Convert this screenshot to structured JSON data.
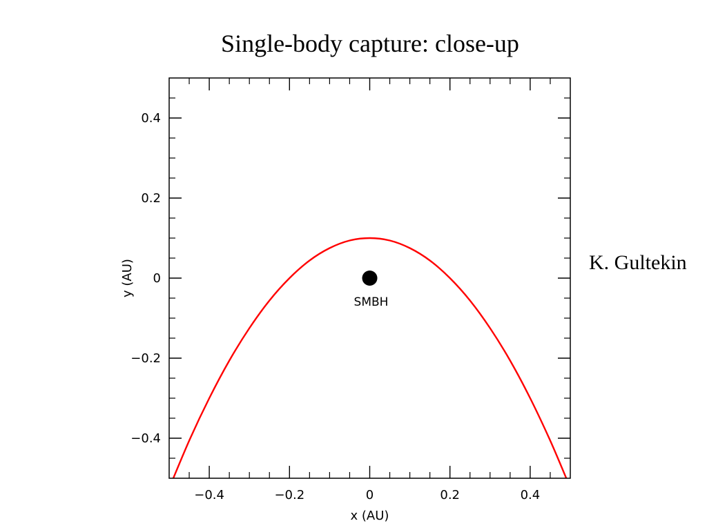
{
  "chart_data": {
    "type": "line",
    "title": "Single-body capture: close-up",
    "xlabel": "x (AU)",
    "ylabel": "y (AU)",
    "xlim": [
      -0.5,
      0.5
    ],
    "ylim": [
      -0.5,
      0.5
    ],
    "x_ticks": [
      {
        "value": -0.4,
        "label": "−0.4"
      },
      {
        "value": -0.2,
        "label": "−0.2"
      },
      {
        "value": 0,
        "label": "0"
      },
      {
        "value": 0.2,
        "label": "0.2"
      },
      {
        "value": 0.4,
        "label": "0.4"
      }
    ],
    "y_ticks": [
      {
        "value": 0.4,
        "label": "0.4"
      },
      {
        "value": 0.2,
        "label": "0.2"
      },
      {
        "value": 0,
        "label": "0"
      },
      {
        "value": -0.2,
        "label": "−0.2"
      },
      {
        "value": -0.4,
        "label": "−0.4"
      }
    ],
    "minor_tick_step": 0.05,
    "grid": false,
    "series": [
      {
        "color": "#ff0000",
        "x": [
          -0.5,
          -0.45,
          -0.4,
          -0.35,
          -0.3,
          -0.25,
          -0.2,
          -0.15,
          -0.1,
          -0.05,
          0,
          0.05,
          0.1,
          0.15,
          0.2,
          0.25,
          0.3,
          0.35,
          0.4,
          0.45,
          0.49
        ],
        "y": [
          -0.525,
          -0.406,
          -0.3,
          -0.206,
          -0.125,
          -0.056,
          0.0,
          0.044,
          0.075,
          0.094,
          0.1,
          0.094,
          0.075,
          0.044,
          0.0,
          -0.056,
          -0.125,
          -0.206,
          -0.3,
          -0.406,
          -0.5
        ]
      }
    ],
    "point": {
      "x": 0,
      "y": 0,
      "label": "SMBH",
      "color": "#000000"
    }
  },
  "author": "K. Gultekin"
}
